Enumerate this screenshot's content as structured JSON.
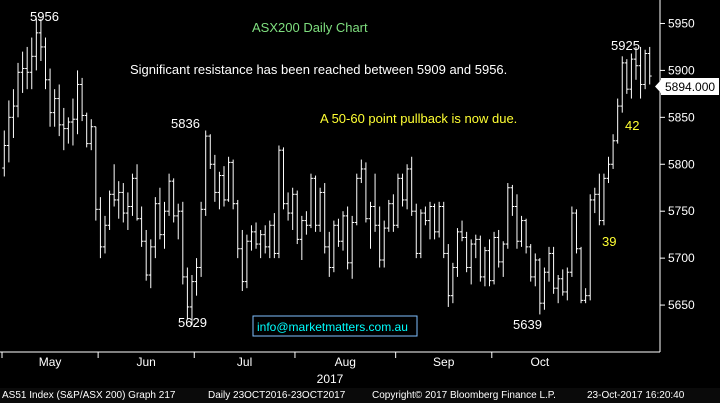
{
  "colors": {
    "background": "#000000",
    "price_bars": "#ffffff",
    "axis": "#ffffff",
    "title": "#7fdf7f",
    "resistance_note": "#ffffff",
    "pullback_note": "#ffff33",
    "move_labels": "#ffff33",
    "email_text": "#00ffff",
    "email_box": "#7fbfff"
  },
  "chart_data": {
    "type": "ohlc",
    "title": "ASX200 Daily Chart",
    "ylim": [
      5600,
      5975
    ],
    "y_ticks": [
      5650,
      5700,
      5750,
      5800,
      5850,
      5900,
      5950
    ],
    "x_ticks": [
      "May",
      "Jun",
      "Jul",
      "Aug",
      "Sep",
      "Oct"
    ],
    "x_year_label": "2017",
    "grid": false,
    "last_price_label": "5894.000",
    "last_price": 5894,
    "series": [
      {
        "values": [
          [
            5796,
            5836,
            5787,
            5820
          ],
          [
            5820,
            5868,
            5802,
            5850
          ],
          [
            5850,
            5880,
            5828,
            5862
          ],
          [
            5862,
            5908,
            5850,
            5898
          ],
          [
            5898,
            5920,
            5876,
            5902
          ],
          [
            5902,
            5925,
            5880,
            5898
          ],
          [
            5898,
            5935,
            5880,
            5915
          ],
          [
            5915,
            5956,
            5900,
            5940
          ],
          [
            5940,
            5955,
            5910,
            5925
          ],
          [
            5925,
            5935,
            5880,
            5890
          ],
          [
            5890,
            5902,
            5840,
            5855
          ],
          [
            5855,
            5880,
            5840,
            5870
          ],
          [
            5870,
            5885,
            5830,
            5842
          ],
          [
            5842,
            5860,
            5815,
            5838
          ],
          [
            5838,
            5850,
            5822,
            5845
          ],
          [
            5845,
            5870,
            5820,
            5848
          ],
          [
            5848,
            5900,
            5832,
            5885
          ],
          [
            5885,
            5892,
            5846,
            5852
          ],
          [
            5852,
            5855,
            5818,
            5822
          ],
          [
            5822,
            5848,
            5815,
            5840
          ],
          [
            5840,
            5840,
            5740,
            5752
          ],
          [
            5752,
            5765,
            5700,
            5712
          ],
          [
            5712,
            5745,
            5705,
            5735
          ],
          [
            5735,
            5772,
            5730,
            5768
          ],
          [
            5768,
            5800,
            5755,
            5762
          ],
          [
            5762,
            5782,
            5742,
            5770
          ],
          [
            5770,
            5780,
            5738,
            5748
          ],
          [
            5748,
            5770,
            5730,
            5755
          ],
          [
            5755,
            5790,
            5745,
            5785
          ],
          [
            5785,
            5800,
            5740,
            5742
          ],
          [
            5742,
            5755,
            5712,
            5718
          ],
          [
            5718,
            5730,
            5676,
            5682
          ],
          [
            5682,
            5720,
            5668,
            5712
          ],
          [
            5712,
            5765,
            5700,
            5758
          ],
          [
            5758,
            5775,
            5720,
            5725
          ],
          [
            5725,
            5760,
            5710,
            5750
          ],
          [
            5750,
            5790,
            5745,
            5782
          ],
          [
            5782,
            5785,
            5738,
            5745
          ],
          [
            5745,
            5758,
            5720,
            5750
          ],
          [
            5750,
            5760,
            5672,
            5680
          ],
          [
            5680,
            5690,
            5635,
            5648
          ],
          [
            5648,
            5682,
            5629,
            5675
          ],
          [
            5675,
            5700,
            5660,
            5690
          ],
          [
            5690,
            5760,
            5680,
            5752
          ],
          [
            5752,
            5836,
            5745,
            5830
          ],
          [
            5830,
            5832,
            5795,
            5800
          ],
          [
            5800,
            5810,
            5760,
            5770
          ],
          [
            5770,
            5792,
            5752,
            5788
          ],
          [
            5788,
            5798,
            5755,
            5762
          ],
          [
            5762,
            5808,
            5760,
            5802
          ],
          [
            5802,
            5805,
            5752,
            5758
          ],
          [
            5758,
            5762,
            5700,
            5710
          ],
          [
            5710,
            5730,
            5665,
            5675
          ],
          [
            5675,
            5725,
            5668,
            5718
          ],
          [
            5718,
            5735,
            5708,
            5728
          ],
          [
            5728,
            5738,
            5710,
            5715
          ],
          [
            5715,
            5730,
            5700,
            5725
          ],
          [
            5725,
            5735,
            5705,
            5712
          ],
          [
            5712,
            5740,
            5700,
            5735
          ],
          [
            5735,
            5748,
            5700,
            5705
          ],
          [
            5705,
            5820,
            5700,
            5815
          ],
          [
            5815,
            5818,
            5752,
            5758
          ],
          [
            5758,
            5770,
            5740,
            5748
          ],
          [
            5748,
            5775,
            5730,
            5768
          ],
          [
            5768,
            5772,
            5715,
            5720
          ],
          [
            5720,
            5745,
            5698,
            5740
          ],
          [
            5740,
            5750,
            5725,
            5735
          ],
          [
            5735,
            5790,
            5732,
            5785
          ],
          [
            5785,
            5788,
            5728,
            5735
          ],
          [
            5735,
            5775,
            5728,
            5770
          ],
          [
            5770,
            5780,
            5705,
            5712
          ],
          [
            5712,
            5728,
            5680,
            5690
          ],
          [
            5690,
            5740,
            5685,
            5735
          ],
          [
            5735,
            5742,
            5712,
            5718
          ],
          [
            5718,
            5750,
            5708,
            5745
          ],
          [
            5745,
            5755,
            5688,
            5695
          ],
          [
            5695,
            5745,
            5678,
            5738
          ],
          [
            5738,
            5790,
            5735,
            5785
          ],
          [
            5785,
            5805,
            5780,
            5795
          ],
          [
            5795,
            5802,
            5738,
            5742
          ],
          [
            5742,
            5760,
            5710,
            5755
          ],
          [
            5755,
            5790,
            5728,
            5735
          ],
          [
            5735,
            5755,
            5690,
            5698
          ],
          [
            5698,
            5740,
            5690,
            5732
          ],
          [
            5732,
            5762,
            5728,
            5758
          ],
          [
            5758,
            5768,
            5728,
            5735
          ],
          [
            5735,
            5790,
            5732,
            5785
          ],
          [
            5785,
            5790,
            5755,
            5762
          ],
          [
            5762,
            5800,
            5752,
            5795
          ],
          [
            5795,
            5808,
            5745,
            5750
          ],
          [
            5750,
            5758,
            5700,
            5705
          ],
          [
            5705,
            5752,
            5700,
            5748
          ],
          [
            5748,
            5755,
            5735,
            5740
          ],
          [
            5740,
            5760,
            5720,
            5755
          ],
          [
            5755,
            5758,
            5720,
            5728
          ],
          [
            5728,
            5760,
            5722,
            5755
          ],
          [
            5755,
            5760,
            5700,
            5705
          ],
          [
            5705,
            5715,
            5648,
            5660
          ],
          [
            5660,
            5695,
            5652,
            5690
          ],
          [
            5690,
            5732,
            5680,
            5728
          ],
          [
            5728,
            5740,
            5718,
            5722
          ],
          [
            5722,
            5728,
            5685,
            5690
          ],
          [
            5690,
            5720,
            5672,
            5715
          ],
          [
            5715,
            5725,
            5700,
            5720
          ],
          [
            5720,
            5724,
            5675,
            5680
          ],
          [
            5680,
            5712,
            5670,
            5708
          ],
          [
            5708,
            5720,
            5670,
            5676
          ],
          [
            5676,
            5728,
            5672,
            5722
          ],
          [
            5722,
            5730,
            5690,
            5696
          ],
          [
            5696,
            5718,
            5680,
            5715
          ],
          [
            5715,
            5780,
            5710,
            5775
          ],
          [
            5775,
            5778,
            5745,
            5755
          ],
          [
            5755,
            5768,
            5710,
            5718
          ],
          [
            5718,
            5745,
            5712,
            5740
          ],
          [
            5740,
            5742,
            5705,
            5712
          ],
          [
            5712,
            5715,
            5675,
            5680
          ],
          [
            5680,
            5705,
            5670,
            5698
          ],
          [
            5698,
            5700,
            5640,
            5652
          ],
          [
            5652,
            5690,
            5645,
            5685
          ],
          [
            5685,
            5712,
            5675,
            5705
          ],
          [
            5705,
            5712,
            5662,
            5668
          ],
          [
            5668,
            5682,
            5652,
            5678
          ],
          [
            5678,
            5688,
            5660,
            5664
          ],
          [
            5664,
            5690,
            5655,
            5685
          ],
          [
            5685,
            5755,
            5680,
            5748
          ],
          [
            5748,
            5752,
            5705,
            5710
          ],
          [
            5710,
            5712,
            5652,
            5655
          ],
          [
            5655,
            5668,
            5652,
            5660
          ],
          [
            5660,
            5768,
            5655,
            5762
          ],
          [
            5762,
            5775,
            5748,
            5768
          ],
          [
            5768,
            5790,
            5735,
            5740
          ],
          [
            5740,
            5790,
            5735,
            5785
          ],
          [
            5785,
            5808,
            5780,
            5800
          ],
          [
            5800,
            5832,
            5795,
            5825
          ],
          [
            5825,
            5870,
            5822,
            5862
          ],
          [
            5862,
            5915,
            5855,
            5908
          ],
          [
            5908,
            5912,
            5875,
            5880
          ],
          [
            5880,
            5918,
            5870,
            5912
          ],
          [
            5912,
            5925,
            5890,
            5905
          ],
          [
            5905,
            5925,
            5870,
            5885
          ],
          [
            5885,
            5922,
            5880,
            5918
          ],
          [
            5918,
            5925,
            5885,
            5894
          ]
        ]
      }
    ],
    "annotations": [
      {
        "text": "5956",
        "color": "#ffffff"
      },
      {
        "text": "5836",
        "color": "#ffffff"
      },
      {
        "text": "5629",
        "color": "#ffffff"
      },
      {
        "text": "5639",
        "color": "#ffffff"
      },
      {
        "text": "5925",
        "color": "#ffffff"
      },
      {
        "text": "42",
        "color": "#ffff33"
      },
      {
        "text": "39",
        "color": "#ffff33"
      }
    ],
    "notes": {
      "resistance": "Significant resistance has been reached between 5909 and 5956.",
      "pullback": "A 50-60 point pullback is now due."
    },
    "contact": "info@marketmatters.com.au"
  },
  "footer": {
    "index": "AS51 Index (S&P/ASX 200) Graph 217",
    "period": "Daily 23OCT2016-23OCT2017",
    "copyright": "Copyright© 2017 Bloomberg Finance L.P.",
    "timestamp": "23-Oct-2017 16:20:40"
  }
}
